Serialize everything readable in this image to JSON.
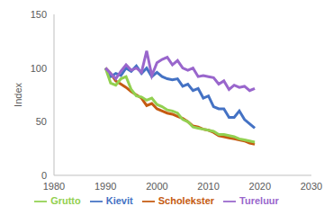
{
  "chart_data": {
    "type": "line",
    "y_label": "Index",
    "x": [
      1990,
      1991,
      1992,
      1993,
      1994,
      1995,
      1996,
      1997,
      1998,
      1999,
      2000,
      2001,
      2002,
      2003,
      2004,
      2005,
      2006,
      2007,
      2008,
      2009,
      2010,
      2011,
      2012,
      2013,
      2014,
      2015,
      2016,
      2017,
      2018,
      2019
    ],
    "series": [
      {
        "name": "Scholekster",
        "color": "#c55a11",
        "values": [
          100,
          95,
          88,
          85,
          82,
          78,
          75,
          72,
          65,
          67,
          62,
          60,
          58,
          57,
          55,
          53,
          50,
          46,
          45,
          43,
          42,
          40,
          37,
          36,
          35,
          34,
          33,
          32,
          30,
          29
        ]
      },
      {
        "name": "Kievit",
        "color": "#4472c4",
        "values": [
          100,
          92,
          95,
          93,
          100,
          97,
          102,
          95,
          100,
          92,
          96,
          92,
          90,
          89,
          90,
          83,
          85,
          79,
          81,
          72,
          74,
          64,
          62,
          62,
          54,
          54,
          60,
          52,
          48,
          44
        ]
      },
      {
        "name": "Grutto",
        "color": "#92d050",
        "values": [
          100,
          86,
          84,
          90,
          92,
          80,
          74,
          73,
          70,
          72,
          66,
          64,
          61,
          60,
          58,
          52,
          50,
          45,
          44,
          43,
          42,
          41,
          38,
          38,
          37,
          36,
          34,
          33,
          32,
          31
        ]
      },
      {
        "name": "Tureluur",
        "color": "#9966cc",
        "values": [
          100,
          95,
          90,
          97,
          103,
          98,
          100,
          96,
          116,
          93,
          105,
          108,
          110,
          103,
          107,
          100,
          98,
          100,
          92,
          93,
          92,
          91,
          85,
          88,
          80,
          84,
          82,
          83,
          79,
          81
        ]
      }
    ],
    "xlim": [
      1980,
      2030
    ],
    "xticks": [
      1980,
      1990,
      2000,
      2010,
      2020,
      2030
    ],
    "ylim": [
      0,
      150
    ],
    "yticks": [
      0,
      50,
      100,
      150
    ],
    "grid": false,
    "legend": "bottom"
  }
}
